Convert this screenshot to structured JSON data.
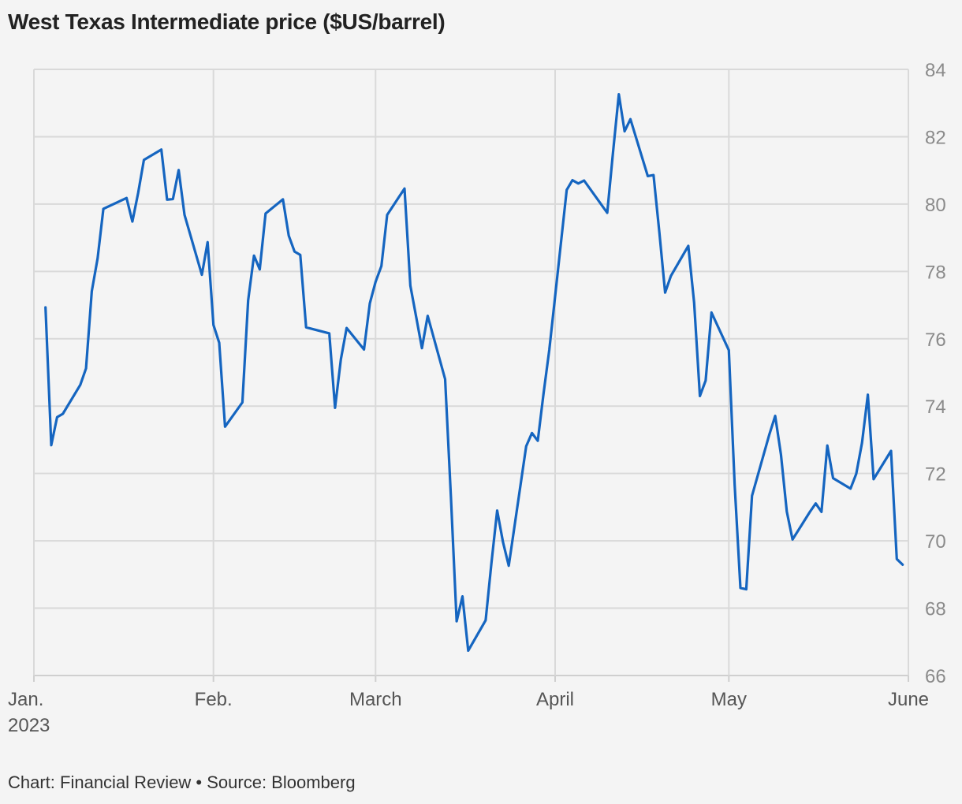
{
  "title": "West Texas Intermediate price ($US/barrel)",
  "footer": "Chart: Financial Review • Source: Bloomberg",
  "chart_data": {
    "type": "line",
    "title": "West Texas Intermediate price ($US/barrel)",
    "xlabel": "",
    "ylabel": "",
    "ylim": [
      66,
      84
    ],
    "xlim": [
      "2023-01-01",
      "2023-06-01"
    ],
    "yticks": [
      "66",
      "68",
      "70",
      "72",
      "74",
      "76",
      "78",
      "80",
      "82",
      "84"
    ],
    "xticks": [
      {
        "date": "2023-01-01",
        "label": "Jan.",
        "sublabel": "2023"
      },
      {
        "date": "2023-02-01",
        "label": "Feb.",
        "sublabel": ""
      },
      {
        "date": "2023-03-01",
        "label": "March",
        "sublabel": ""
      },
      {
        "date": "2023-04-01",
        "label": "April",
        "sublabel": ""
      },
      {
        "date": "2023-05-01",
        "label": "May",
        "sublabel": ""
      },
      {
        "date": "2023-06-01",
        "label": "June",
        "sublabel": ""
      }
    ],
    "y_axis_position": "right",
    "grid": true,
    "line_color": "#1565c0",
    "series": [
      {
        "x": [
          "2023-01-03",
          "2023-01-04",
          "2023-01-05",
          "2023-01-06",
          "2023-01-09",
          "2023-01-10",
          "2023-01-11",
          "2023-01-12",
          "2023-01-13",
          "2023-01-17",
          "2023-01-18",
          "2023-01-19",
          "2023-01-20",
          "2023-01-23",
          "2023-01-24",
          "2023-01-25",
          "2023-01-26",
          "2023-01-27",
          "2023-01-30",
          "2023-01-31",
          "2023-02-01",
          "2023-02-02",
          "2023-02-03",
          "2023-02-06",
          "2023-02-07",
          "2023-02-08",
          "2023-02-09",
          "2023-02-10",
          "2023-02-13",
          "2023-02-14",
          "2023-02-15",
          "2023-02-16",
          "2023-02-17",
          "2023-02-21",
          "2023-02-22",
          "2023-02-23",
          "2023-02-24",
          "2023-02-27",
          "2023-02-28",
          "2023-03-01",
          "2023-03-02",
          "2023-03-03",
          "2023-03-06",
          "2023-03-07",
          "2023-03-08",
          "2023-03-09",
          "2023-03-10",
          "2023-03-13",
          "2023-03-14",
          "2023-03-15",
          "2023-03-16",
          "2023-03-17",
          "2023-03-20",
          "2023-03-21",
          "2023-03-22",
          "2023-03-23",
          "2023-03-24",
          "2023-03-27",
          "2023-03-28",
          "2023-03-29",
          "2023-03-30",
          "2023-03-31",
          "2023-04-03",
          "2023-04-04",
          "2023-04-05",
          "2023-04-06",
          "2023-04-10",
          "2023-04-11",
          "2023-04-12",
          "2023-04-13",
          "2023-04-14",
          "2023-04-17",
          "2023-04-18",
          "2023-04-19",
          "2023-04-20",
          "2023-04-21",
          "2023-04-24",
          "2023-04-25",
          "2023-04-26",
          "2023-04-27",
          "2023-04-28",
          "2023-05-01",
          "2023-05-02",
          "2023-05-03",
          "2023-05-04",
          "2023-05-05",
          "2023-05-08",
          "2023-05-09",
          "2023-05-10",
          "2023-05-11",
          "2023-05-12",
          "2023-05-15",
          "2023-05-16",
          "2023-05-17",
          "2023-05-18",
          "2023-05-19",
          "2023-05-22",
          "2023-05-23",
          "2023-05-24",
          "2023-05-25",
          "2023-05-26",
          "2023-05-29",
          "2023-05-30",
          "2023-05-31"
        ],
        "y": [
          76.93,
          72.84,
          73.67,
          73.77,
          74.63,
          75.12,
          77.41,
          78.39,
          79.86,
          80.18,
          79.48,
          80.33,
          81.31,
          81.62,
          80.13,
          80.15,
          81.01,
          79.68,
          77.9,
          78.87,
          76.41,
          75.88,
          73.39,
          74.11,
          77.14,
          78.47,
          78.06,
          79.72,
          80.14,
          79.06,
          78.59,
          78.49,
          76.34,
          76.16,
          73.95,
          75.39,
          76.32,
          75.68,
          77.05,
          77.69,
          78.16,
          79.68,
          80.46,
          77.58,
          76.66,
          75.72,
          76.68,
          74.8,
          71.33,
          67.61,
          68.35,
          66.74,
          67.64,
          69.33,
          70.9,
          69.96,
          69.26,
          72.81,
          73.2,
          72.97,
          74.37,
          75.67,
          80.42,
          80.71,
          80.61,
          80.7,
          79.74,
          81.53,
          83.26,
          82.16,
          82.52,
          80.83,
          80.86,
          79.16,
          77.37,
          77.87,
          78.76,
          77.07,
          74.3,
          74.76,
          76.78,
          75.66,
          71.66,
          68.6,
          68.56,
          71.34,
          73.16,
          73.71,
          72.56,
          70.87,
          70.04,
          70.86,
          71.11,
          70.86,
          72.83,
          71.86,
          71.55,
          71.99,
          72.91,
          74.34,
          71.83,
          72.67,
          69.46,
          69.29
        ]
      }
    ]
  }
}
